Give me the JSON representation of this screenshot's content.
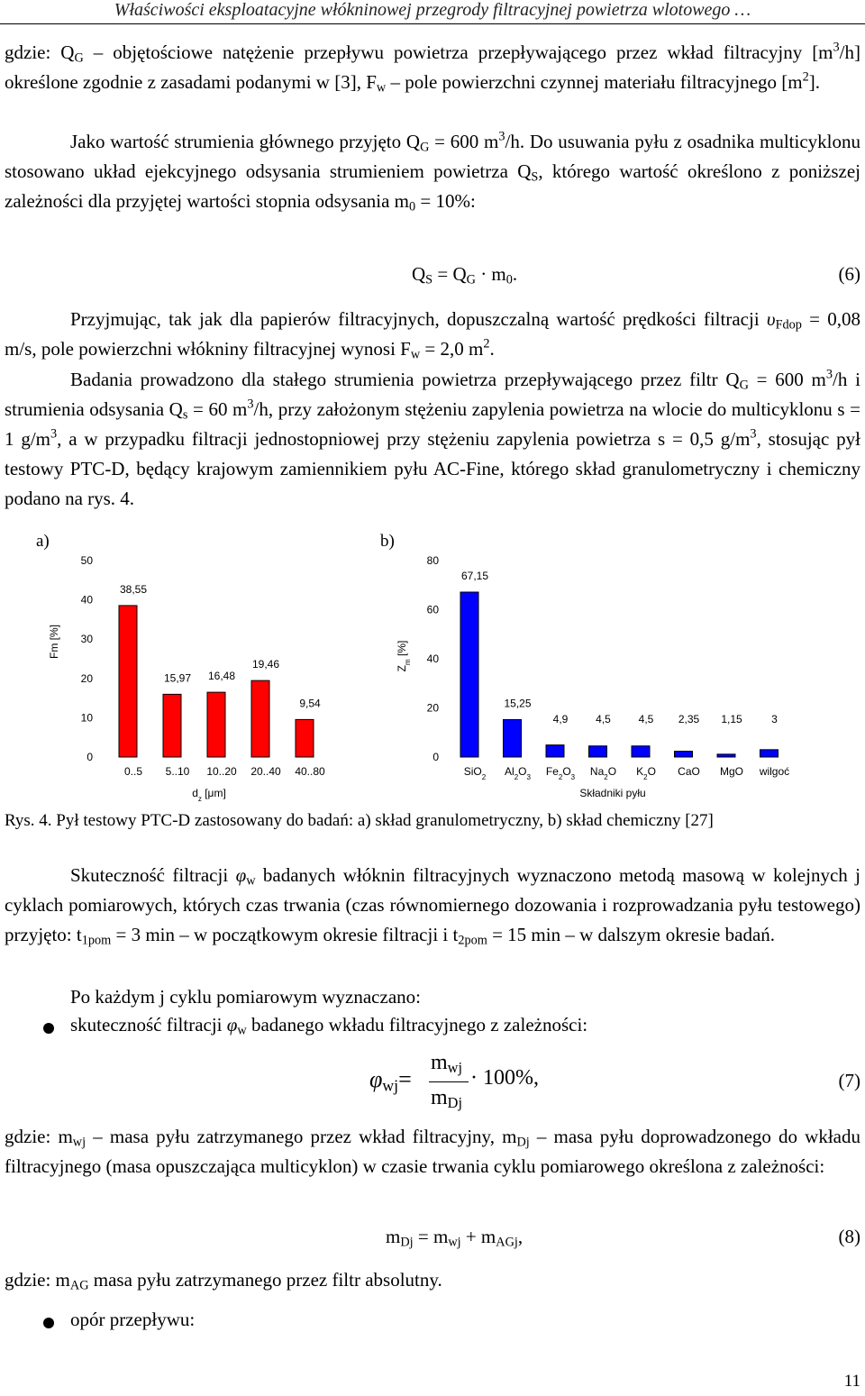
{
  "header": "Właściwości eksploatacyjne włókninowej przegrody filtracyjnej powietrza wlotowego …",
  "p1": [
    "gdzie: Q",
    {
      "sub": "G"
    },
    " – objętościowe natężenie przepływu powietrza przepływającego przez wkład filtracyjny [m",
    {
      "sup": "3"
    },
    "/h] określone zgodnie z zasadami podanymi w [3], F",
    {
      "sub": "w"
    },
    " – pole powierzchni czynnej materiału filtracyjnego [m",
    {
      "sup": "2"
    },
    "]."
  ],
  "p2": [
    "Jako wartość strumienia głównego przyjęto Q",
    {
      "sub": "G"
    },
    " = 600 m",
    {
      "sup": "3"
    },
    "/h. Do usuwania pyłu z osadnika multicyklonu stosowano układ ejekcyjnego odsysania strumieniem powietrza Q",
    {
      "sub": "S"
    },
    ", którego wartość określono z poniższej zależności dla przyjętej wartości stopnia odsysania m",
    {
      "sub": "0"
    },
    " = 10%:"
  ],
  "eq6": {
    "runs": [
      "Q",
      {
        "sub": "S"
      },
      " = Q",
      {
        "sub": "G"
      },
      " · m",
      {
        "sub": "0"
      },
      "."
    ],
    "number": "(6)"
  },
  "p3": [
    "Przyjmując, tak jak dla papierów filtracyjnych, dopuszczalną wartość prędkości filtracji ",
    {
      "i": "υ"
    },
    {
      "sub": "Fdop"
    },
    " = 0,08 m/s, pole powierzchni włókniny filtracyjnej wynosi F",
    {
      "sub": "w"
    },
    " = 2,0 m",
    {
      "sup": "2"
    },
    "."
  ],
  "p4": [
    "Badania prowadzono dla stałego strumienia powietrza przepływającego przez filtr Q",
    {
      "sub": "G"
    },
    " = 600 m",
    {
      "sup": "3"
    },
    "/h i strumienia odsysania Q",
    {
      "sub": "s"
    },
    " = 60 m",
    {
      "sup": "3"
    },
    "/h, przy założonym stężeniu zapylenia powietrza na wlocie do multicyklonu s = 1 g/m",
    {
      "sup": "3"
    },
    ", a w przypadku filtracji jednostopniowej przy stężeniu zapylenia powietrza s = 0,5 g/m",
    {
      "sup": "3"
    },
    ", stosując pył testowy PTC-D, będący krajowym zamiennikiem pyłu AC-Fine, którego skład granulometryczny i chemiczny podano na rys. 4."
  ],
  "chart_data": [
    {
      "type": "bar",
      "panel": "a)",
      "ylabel": "Fm [%]",
      "xlabel": [
        "d",
        {
          "sub": "z"
        },
        " [μm]"
      ],
      "categories": [
        "0..5",
        "5..10",
        "10..20",
        "20..40",
        "40..80"
      ],
      "values": [
        38.55,
        15.97,
        16.48,
        19.46,
        9.54
      ],
      "value_labels": [
        "38,55",
        "15,97",
        "16,48",
        "19,46",
        "9,54"
      ],
      "color": "#ff0000",
      "ylim": [
        0,
        50
      ],
      "yticks": [
        0,
        10,
        20,
        30,
        40,
        50
      ],
      "grid": false
    },
    {
      "type": "bar",
      "panel": "b)",
      "ylabel": [
        "Z",
        {
          "sub": "m"
        },
        " [%]"
      ],
      "xlabel": "Składniki pyłu",
      "categories": [
        [
          "SiO",
          {
            "sub": "2"
          }
        ],
        [
          "Al",
          {
            "sub": "2"
          },
          "O",
          {
            "sub": "3"
          }
        ],
        [
          "Fe",
          {
            "sub": "2"
          },
          "O",
          {
            "sub": "3"
          }
        ],
        [
          "Na",
          {
            "sub": "2"
          },
          "O"
        ],
        [
          "K",
          {
            "sub": "2"
          },
          "O"
        ],
        "CaO",
        "MgO",
        "wilgoć"
      ],
      "values": [
        67.15,
        15.25,
        4.9,
        4.5,
        4.5,
        2.35,
        1.15,
        3
      ],
      "value_labels": [
        "67,15",
        "15,25",
        "4,9",
        "4,5",
        "4,5",
        "2,35",
        "1,15",
        "3"
      ],
      "color": "#0000ff",
      "ylim": [
        0,
        80
      ],
      "yticks": [
        0,
        20,
        40,
        60,
        80
      ],
      "grid": false
    }
  ],
  "caption": "Rys. 4. Pył testowy PTC-D zastosowany do badań: a) skład granulometryczny, b) skład chemiczny [27]",
  "p5": [
    "Skuteczność filtracji ",
    {
      "i": "φ"
    },
    {
      "sub": "w"
    },
    " badanych włóknin filtracyjnych wyznaczono metodą masową w kolejnych j cyklach pomiarowych, których czas trwania (czas równomiernego dozowania i rozprowadzania pyłu testowego) przyjęto: t",
    {
      "sub": "1pom"
    },
    " = 3 min – w początkowym okresie filtracji i t",
    {
      "sub": "2pom"
    },
    " = 15 min – w dalszym okresie badań."
  ],
  "p6": [
    "Po każdym j cyklu pomiarowym wyznaczano:"
  ],
  "bullet1": [
    "skuteczność filtracji ",
    {
      "i": "φ"
    },
    {
      "sub": "w"
    },
    " badanego wkładu filtracyjnego z zależności:"
  ],
  "eq7": {
    "lhs": [
      {
        "i": "φ"
      },
      {
        "sub": "wj"
      },
      "="
    ],
    "num": [
      "m",
      {
        "sub": "wj"
      }
    ],
    "den": [
      "m",
      {
        "sub": "Dj"
      }
    ],
    "rhs": [
      "· 100%,"
    ],
    "number": "(7)"
  },
  "p7": [
    "gdzie: m",
    {
      "sub": "wj"
    },
    " – masa pyłu zatrzymanego przez wkład filtracyjny, m",
    {
      "sub": "Dj"
    },
    " – masa pyłu doprowadzonego do wkładu filtracyjnego (masa opuszczająca multicyklon) w czasie trwania cyklu pomiarowego określona z zależności:"
  ],
  "eq8": {
    "runs": [
      "m",
      {
        "sub": "Dj"
      },
      " = m",
      {
        "sub": "wj"
      },
      " + m",
      {
        "sub": "AGj"
      },
      ","
    ],
    "number": "(8)"
  },
  "p8": [
    "gdzie: m",
    {
      "sub": "AG"
    },
    " masa pyłu zatrzymanego przez filtr absolutny."
  ],
  "bullet2": [
    "opór przepływu:"
  ],
  "page_number": "11"
}
